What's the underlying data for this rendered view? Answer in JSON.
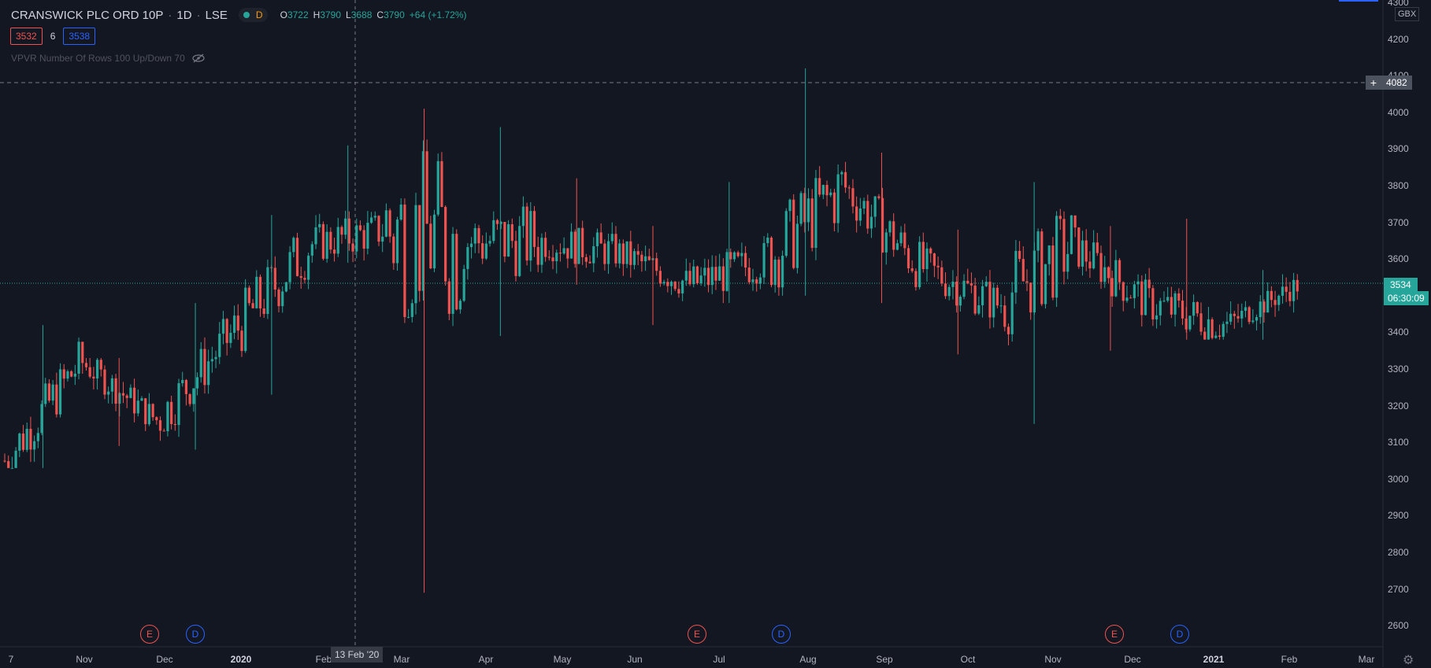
{
  "header": {
    "symbol": "CRANSWICK PLC ORD 10P",
    "interval": "1D",
    "exchange": "LSE",
    "interval_badge": "D",
    "ohlc": {
      "o_label": "O",
      "o": "3722",
      "h_label": "H",
      "h": "3790",
      "l_label": "L",
      "l": "3688",
      "c_label": "C",
      "c": "3790",
      "change": "+64 (+1.72%)"
    },
    "sell_price": "3532",
    "spread": "6",
    "buy_price": "3538",
    "indicator": "VPVR Number Of Rows 100 Up/Down 70"
  },
  "price_axis": {
    "currency": "GBX",
    "labels": [
      "4300",
      "4200",
      "4100",
      "4000",
      "3900",
      "3800",
      "3700",
      "3600",
      "3500",
      "3400",
      "3300",
      "3200",
      "3100",
      "3000",
      "2900",
      "2800",
      "2700",
      "2600"
    ],
    "last_price": "3534",
    "countdown": "06:30:09",
    "crosshair_price": "4082"
  },
  "time_axis": {
    "labels": [
      {
        "text": "7",
        "bold": false
      },
      {
        "text": "Nov",
        "bold": false
      },
      {
        "text": "Dec",
        "bold": false
      },
      {
        "text": "2020",
        "bold": true
      },
      {
        "text": "Feb",
        "bold": false
      },
      {
        "text": "Mar",
        "bold": false
      },
      {
        "text": "Apr",
        "bold": false
      },
      {
        "text": "May",
        "bold": false
      },
      {
        "text": "Jun",
        "bold": false
      },
      {
        "text": "Jul",
        "bold": false
      },
      {
        "text": "Aug",
        "bold": false
      },
      {
        "text": "Sep",
        "bold": false
      },
      {
        "text": "Oct",
        "bold": false
      },
      {
        "text": "Nov",
        "bold": false
      },
      {
        "text": "Dec",
        "bold": false
      },
      {
        "text": "2021",
        "bold": true
      },
      {
        "text": "Feb",
        "bold": false
      },
      {
        "text": "Mar",
        "bold": false
      }
    ],
    "crosshair_date": "13 Feb '20"
  },
  "event_markers": [
    "E",
    "D",
    "E",
    "D",
    "E",
    "D"
  ],
  "colors": {
    "background": "#131722",
    "up": "#26a69a",
    "down": "#ef5350",
    "earnings": "#ef5350",
    "dividend": "#2962ff"
  },
  "icons": {
    "settings": "gear-icon",
    "hide": "eye-slash-icon",
    "crosshair_add": "plus-icon"
  },
  "chart_data": {
    "type": "candlestick",
    "title": "CRANSWICK PLC ORD 10P",
    "interval": "1D",
    "currency": "GBX",
    "ylim": [
      2550,
      4300
    ],
    "x_range": [
      "2019-10-07",
      "2021-03-01"
    ],
    "series": [
      {
        "period": "2019-10",
        "open": 3050,
        "high": 3420,
        "low": 3030,
        "close": 3320
      },
      {
        "period": "2019-11",
        "open": 3320,
        "high": 3330,
        "low": 3090,
        "close": 3160
      },
      {
        "period": "2019-12",
        "open": 3160,
        "high": 3480,
        "low": 3080,
        "close": 3400
      },
      {
        "period": "2020-01",
        "open": 3400,
        "high": 3720,
        "low": 3230,
        "close": 3640
      },
      {
        "period": "2020-02",
        "open": 3640,
        "high": 3910,
        "low": 3590,
        "close": 3680
      },
      {
        "period": "2020-03",
        "open": 3680,
        "high": 4010,
        "low": 2690,
        "close": 3650
      },
      {
        "period": "2020-04",
        "open": 3650,
        "high": 3960,
        "low": 3390,
        "close": 3650
      },
      {
        "period": "2020-05",
        "open": 3650,
        "high": 3820,
        "low": 3530,
        "close": 3620
      },
      {
        "period": "2020-06",
        "open": 3620,
        "high": 3690,
        "low": 3420,
        "close": 3530
      },
      {
        "period": "2020-07",
        "open": 3530,
        "high": 3810,
        "low": 3480,
        "close": 3600
      },
      {
        "period": "2020-08",
        "open": 3600,
        "high": 4120,
        "low": 3500,
        "close": 3800
      },
      {
        "period": "2020-09",
        "open": 3800,
        "high": 3890,
        "low": 3480,
        "close": 3580
      },
      {
        "period": "2020-10",
        "open": 3580,
        "high": 3680,
        "low": 3340,
        "close": 3480
      },
      {
        "period": "2020-11",
        "open": 3480,
        "high": 3810,
        "low": 3150,
        "close": 3640
      },
      {
        "period": "2020-12",
        "open": 3640,
        "high": 3690,
        "low": 3350,
        "close": 3480
      },
      {
        "period": "2021-01",
        "open": 3480,
        "high": 3710,
        "low": 3380,
        "close": 3420
      },
      {
        "period": "2021-02",
        "open": 3420,
        "high": 3570,
        "low": 3380,
        "close": 3534
      }
    ]
  }
}
